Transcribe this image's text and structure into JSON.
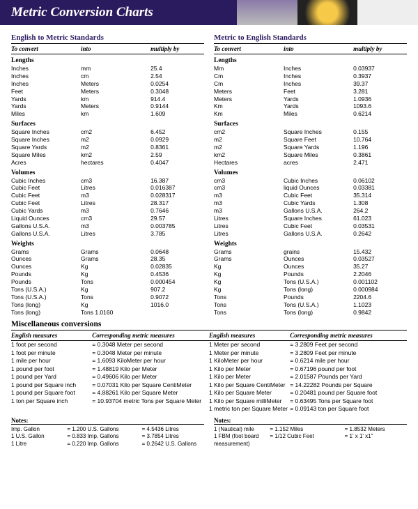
{
  "title": "Metric Conversion Charts",
  "left": {
    "heading": "English to Metric Standards",
    "headers": [
      "To convert",
      "into",
      "multiply by"
    ],
    "cats": [
      {
        "name": "Lengths",
        "rows": [
          [
            "Inches",
            "mm",
            "25.4"
          ],
          [
            "Inches",
            "cm",
            "2.54"
          ],
          [
            "Inches",
            "Meters",
            "0.0254"
          ],
          [
            "Feet",
            "Meters",
            "0.3048"
          ],
          [
            "Yards",
            "km",
            "914.4"
          ],
          [
            "Yards",
            "Meters",
            "0.9144"
          ],
          [
            "Miles",
            "km",
            "1.609"
          ]
        ]
      },
      {
        "name": "Surfaces",
        "rows": [
          [
            "Square Inches",
            "cm2",
            "6.452"
          ],
          [
            "Square Inches",
            "m2",
            "0.0929"
          ],
          [
            "Square Yards",
            "m2",
            "0.8361"
          ],
          [
            "Square Miles",
            "km2",
            "2.59"
          ],
          [
            "Acres",
            "hectares",
            "0.4047"
          ]
        ]
      },
      {
        "name": "Volumes",
        "rows": [
          [
            "Cubic Inches",
            "cm3",
            "16.387"
          ],
          [
            "Cubic Feet",
            "Litres",
            "0.016387"
          ],
          [
            "Cubic Feet",
            "m3",
            "0.028317"
          ],
          [
            "Cubic Feet",
            "Litres",
            "28.317"
          ],
          [
            "Cubic Yards",
            "m3",
            "0.7646"
          ],
          [
            "Liquid Ounces",
            "cm3",
            "29.57"
          ],
          [
            "Gallons U.S.A.",
            "m3",
            "0.003785"
          ],
          [
            "Gallons U.S.A.",
            "Litres",
            "3.785"
          ]
        ]
      },
      {
        "name": "Weights",
        "rows": [
          [
            "Grams",
            "Grams",
            "0.0648"
          ],
          [
            "Ounces",
            "Grams",
            "28.35"
          ],
          [
            "Ounces",
            "Kg",
            "0.02835"
          ],
          [
            "Pounds",
            "Kg",
            "0.4536"
          ],
          [
            "Pounds",
            "Tons",
            "0.000454"
          ],
          [
            "Tons (U.S.A.)",
            "Kg",
            "907.2"
          ],
          [
            "Tons (U.S.A.)",
            "Tons",
            "0.9072"
          ],
          [
            "Tons (long)",
            "Kg",
            "1016.0"
          ],
          [
            "Tons (long)",
            "Tons       1.0160",
            ""
          ]
        ]
      }
    ]
  },
  "right": {
    "heading": "Metric to English Standards",
    "headers": [
      "To convert",
      "into",
      "multiply by"
    ],
    "cats": [
      {
        "name": "Lengths",
        "rows": [
          [
            "Mm",
            "Inches",
            "0.03937"
          ],
          [
            "Cm",
            "Inches",
            "0.3937"
          ],
          [
            "Cm",
            "Inches",
            "39.37"
          ],
          [
            "Meters",
            "Feet",
            "3.281"
          ],
          [
            "Meters",
            "Yards",
            "1.0936"
          ],
          [
            "Km",
            "Yards",
            "1093.6"
          ],
          [
            "Km",
            "Miles",
            "0.6214"
          ]
        ]
      },
      {
        "name": "Surfaces",
        "rows": [
          [
            "cm2",
            "Square Inches",
            "0.155"
          ],
          [
            "m2",
            "Square Feet",
            "10.764"
          ],
          [
            "m2",
            "Square Yards",
            "1.196"
          ],
          [
            "km2",
            "Square Miles",
            "0.3861"
          ],
          [
            "Hectares",
            "acres",
            "2.471"
          ]
        ]
      },
      {
        "name": "Volumes",
        "rows": [
          [
            "cm3",
            "Cubic Inches",
            "0.06102"
          ],
          [
            "cm3",
            "liquid Ounces",
            "0.03381"
          ],
          [
            "m3",
            "Cubic Feet",
            "35.314"
          ],
          [
            "m3",
            "Cubic Yards",
            "1.308"
          ],
          [
            "m3",
            "Gallons U.S.A.",
            "264.2"
          ],
          [
            "Litres",
            "Square Inches",
            "61.023"
          ],
          [
            "Litres",
            "Cubic Feet",
            "0.03531"
          ],
          [
            "Litres",
            "Gallons U.S.A.",
            "0.2642"
          ]
        ]
      },
      {
        "name": "Weights",
        "rows": [
          [
            "Grams",
            "grains",
            "15.432"
          ],
          [
            "Grams",
            "Ounces",
            "0.03527"
          ],
          [
            "Kg",
            "Ounces",
            "35.27"
          ],
          [
            "Kg",
            "Pounds",
            "2.2046"
          ],
          [
            "Kg",
            "Tons (U.S.A.)",
            "0.001102"
          ],
          [
            "Kg",
            "Tons (long)",
            "0.000984"
          ],
          [
            "Tons",
            "Pounds",
            "2204.6"
          ],
          [
            "Tons",
            "Tons (U.S.A.)",
            "1.1023"
          ],
          [
            "Tons",
            "Tons (long)",
            "0.9842"
          ]
        ]
      }
    ]
  },
  "misc": {
    "title": "Miscellaneous conversions",
    "headers": [
      "English measures",
      "Corresponding metric measures",
      "English measures",
      "Corresponding metric measures"
    ],
    "rows": [
      [
        "1 foot per second",
        "= 0.3048 Meter per second",
        "1 Meter per second",
        "= 3.2809 Feet per second"
      ],
      [
        "1 foot per minute",
        "= 0.3048 Meter per minute",
        "1 Meter per minute",
        "= 3.2809 Feet per minute"
      ],
      [
        "1 mile per hour",
        "= 1.6093 KiloMeter per hour",
        "1 KiloMeter per hour",
        "= 0.6214 mile per hour"
      ],
      [
        "1 pound per foot",
        "= 1.48819 Kilo per Meter",
        "1 Kilo per Meter",
        "= 0.67196 pound per foot"
      ],
      [
        "1 pound per Yard",
        "= 0.49606 Kilo per Meter",
        "1 Kilo per Meter",
        "= 2.01587 Pounds per Yard"
      ],
      [
        "1 pound per Square inch",
        "= 0.07031 Kilo per Square CentiMeter",
        "1 Kilo per Square CentiMeter",
        "= 14.22282 Pounds per Square"
      ],
      [
        "1 pound per Square foot",
        "= 4.88261 Kilo per Square Meter",
        "1 Kilo per Square Meter",
        "= 0.20481 pound per Square foot"
      ],
      [
        "1 ton per Square inch",
        "= 10.93704 metric Tons per Square Meter",
        "1 Kilo per Square milliMeter",
        "= 0.63495 Tons per Square foot"
      ],
      [
        "",
        "",
        "1 metric ton per Square Meter",
        "= 0.09143 ton per Square foot"
      ]
    ]
  },
  "notesLeft": {
    "title": "Notes:",
    "rows": [
      [
        "Imp. Gallon",
        "= 1.200 U.S. Gallons",
        "= 4.5436 Litres"
      ],
      [
        "1 U.S. Gallon",
        "= 0.833 Imp. Gallons",
        "= 3.7854 Litres"
      ],
      [
        "1 Litre",
        "= 0.220 Imp. Gallons",
        "= 0.2642 U.S. Gallons"
      ]
    ]
  },
  "notesRight": {
    "title": "Notes:",
    "rows": [
      [
        "1 (Nautical) mile",
        "= 1.152 Miles",
        "= 1.8532 Meters"
      ],
      [
        "1 FBM (foot board measurement)",
        "= 1/12 Cubic Feet",
        "= 1' x 1' x1\""
      ]
    ]
  }
}
